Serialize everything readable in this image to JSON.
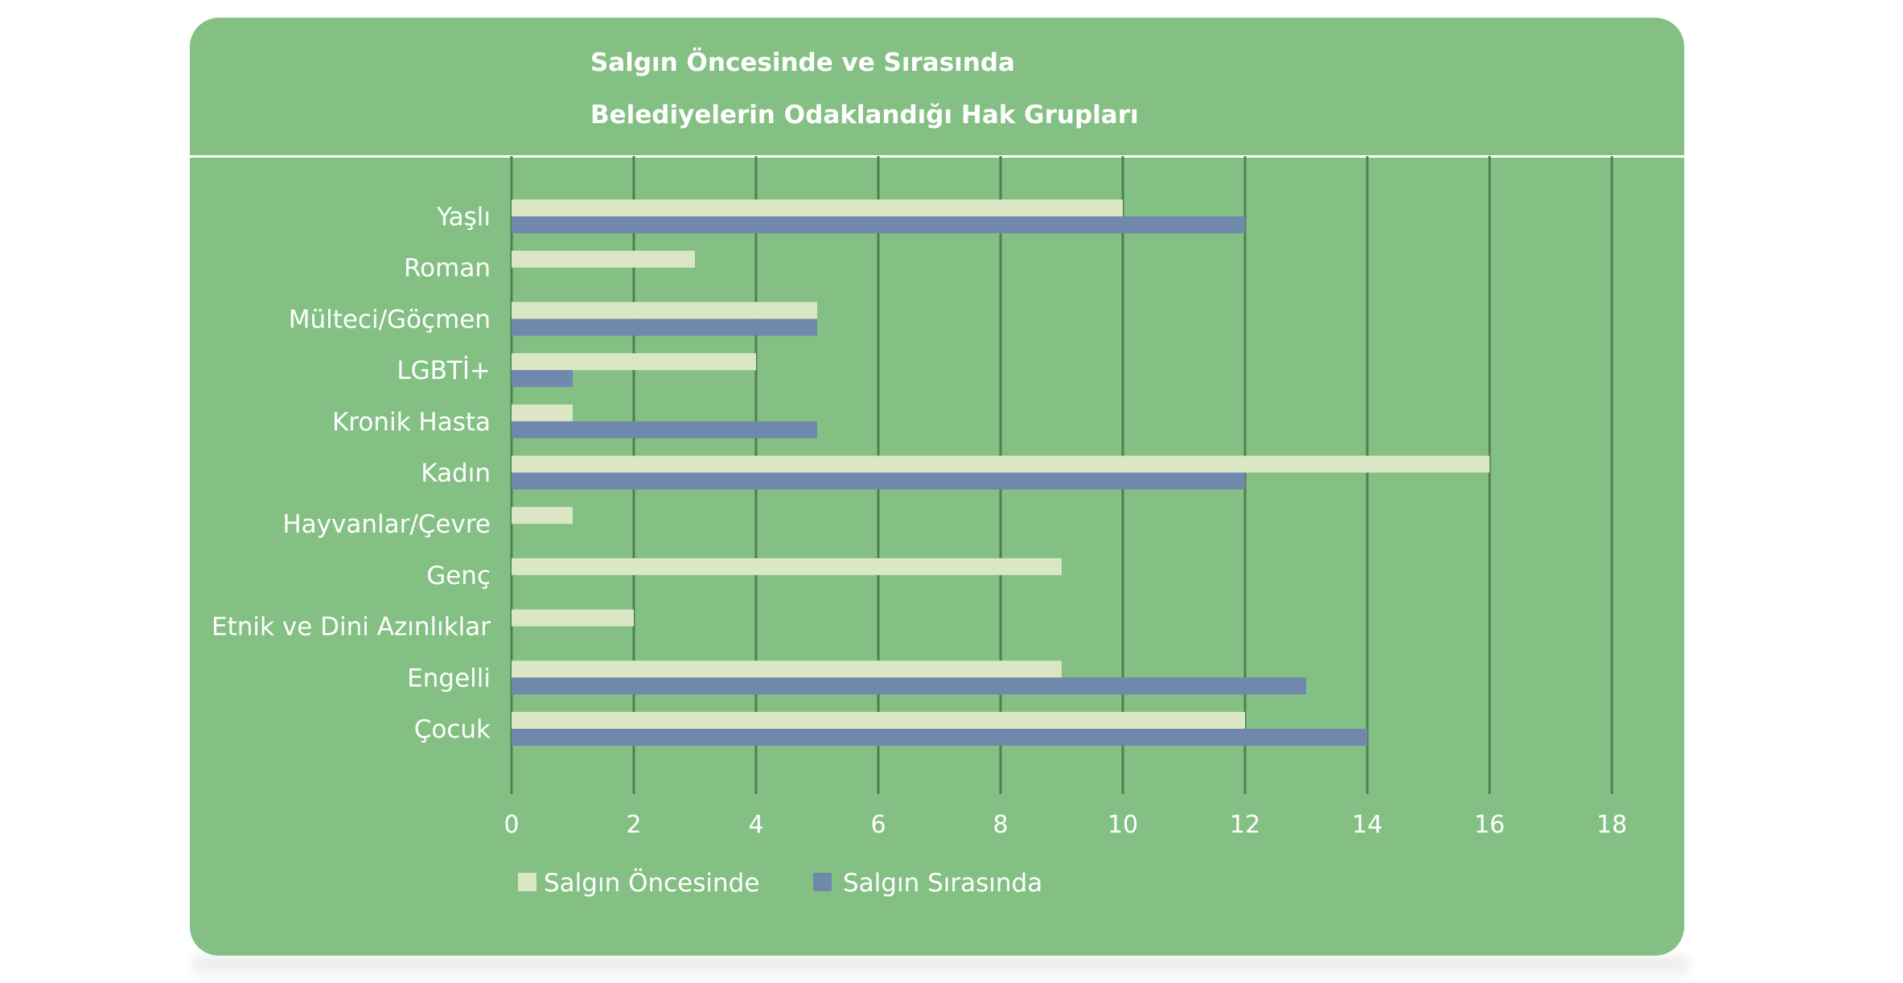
{
  "chart_data": {
    "type": "bar",
    "orientation": "horizontal",
    "title_lines": [
      "Salgın Öncesinde ve Sırasında",
      "Belediyelerin Odaklandığı Hak Grupları"
    ],
    "categories": [
      "Yaşlı",
      "Roman",
      "Mülteci/Göçmen",
      "LGBTİ+",
      "Kronik Hasta",
      "Kadın",
      "Hayvanlar/Çevre",
      "Genç",
      "Etnik ve Dini Azınlıklar",
      "Engelli",
      "Çocuk"
    ],
    "series": [
      {
        "name": "Salgın Öncesinde",
        "color": "#dbe6c4",
        "values": [
          10,
          3,
          5,
          4,
          1,
          16,
          1,
          9,
          2,
          9,
          12
        ]
      },
      {
        "name": "Salgın Sırasında",
        "color": "#6f88ab",
        "values": [
          12,
          0,
          5,
          1,
          5,
          12,
          0,
          0,
          0,
          13,
          14
        ]
      }
    ],
    "xlim": [
      0,
      18
    ],
    "xticks": [
      0,
      2,
      4,
      6,
      8,
      10,
      12,
      14,
      16,
      18
    ],
    "grid": true,
    "legend": "bottom-left"
  },
  "colors": {
    "card_background": "#84c084",
    "gridline": "#4f7f4f",
    "divider": "#ffffff",
    "text": "#ffffff"
  }
}
